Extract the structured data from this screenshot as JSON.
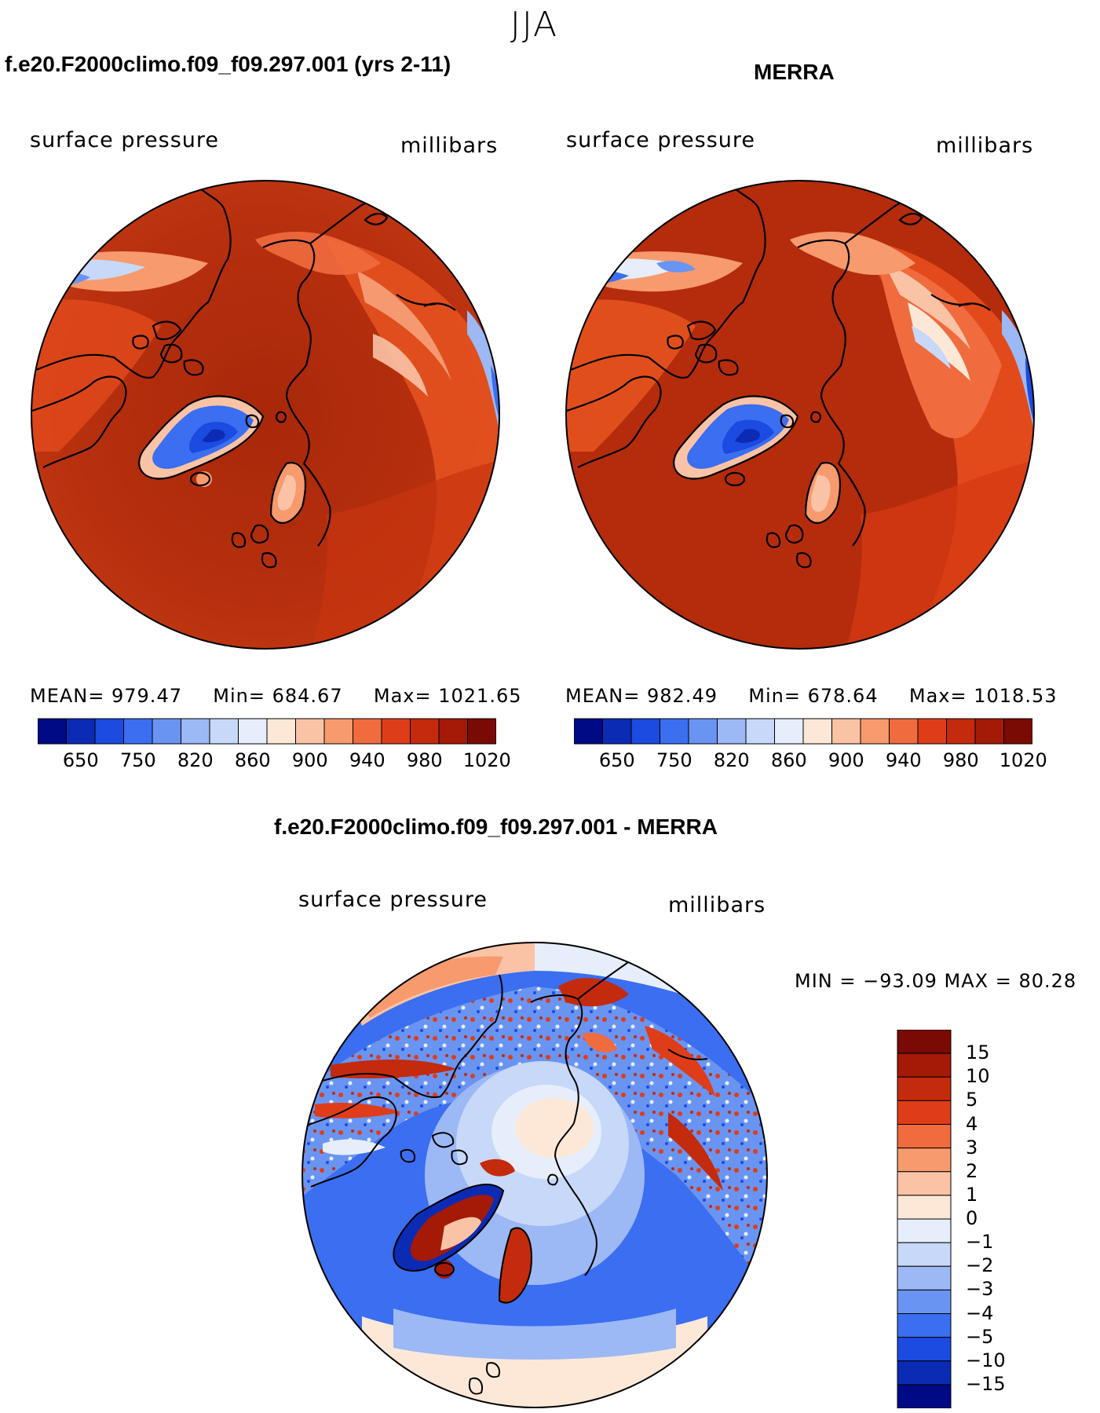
{
  "season": "JJA",
  "panels": [
    {
      "title": "f.e20.F2000climo.f09_f09.297.001 (yrs 2-11)",
      "variable": "surface pressure",
      "units": "millibars",
      "stats": {
        "mean_label": "MEAN=",
        "mean": "979.47",
        "min_label": "Min=",
        "min": "684.67",
        "max_label": "Max=",
        "max": "1021.65"
      }
    },
    {
      "title": "MERRA",
      "variable": "surface pressure",
      "units": "millibars",
      "stats": {
        "mean_label": "MEAN=",
        "mean": "982.49",
        "min_label": "Min=",
        "min": "678.64",
        "max_label": "Max=",
        "max": "1018.53"
      }
    }
  ],
  "abs_colorbar": {
    "colors": [
      "#000a84",
      "#0c2bb5",
      "#1b4be0",
      "#3b6ef0",
      "#6a94f2",
      "#9cb8f5",
      "#c7d8f8",
      "#e6eefb",
      "#fde8d8",
      "#fbc3a6",
      "#f79a6e",
      "#f06b3e",
      "#df3d19",
      "#c42a0c",
      "#a41a06",
      "#7a0a04"
    ],
    "tick_labels": [
      "650",
      "750",
      "820",
      "860",
      "900",
      "940",
      "980",
      "1020"
    ]
  },
  "diff_panel": {
    "title": "f.e20.F2000climo.f09_f09.297.001 - MERRA",
    "variable": "surface pressure",
    "units": "millibars",
    "minmax_text": "MIN = −93.09  MAX =   80.28",
    "colorbar": {
      "colors": [
        "#7a0a04",
        "#a41a06",
        "#c42a0c",
        "#df3d19",
        "#f06b3e",
        "#f79a6e",
        "#fbc3a6",
        "#fde8d8",
        "#e6eefb",
        "#c7d8f8",
        "#9cb8f5",
        "#6a94f2",
        "#3b6ef0",
        "#1b4be0",
        "#0c2bb5",
        "#000a84"
      ],
      "tick_labels": [
        "15",
        "10",
        "5",
        "4",
        "3",
        "2",
        "1",
        "0",
        "−1",
        "−2",
        "−3",
        "−4",
        "−5",
        "−10",
        "−15"
      ]
    }
  },
  "colors": {
    "land_outline": "#000000",
    "high_pressure": "#b42a0c",
    "low_pressure": "#1b4be0"
  }
}
